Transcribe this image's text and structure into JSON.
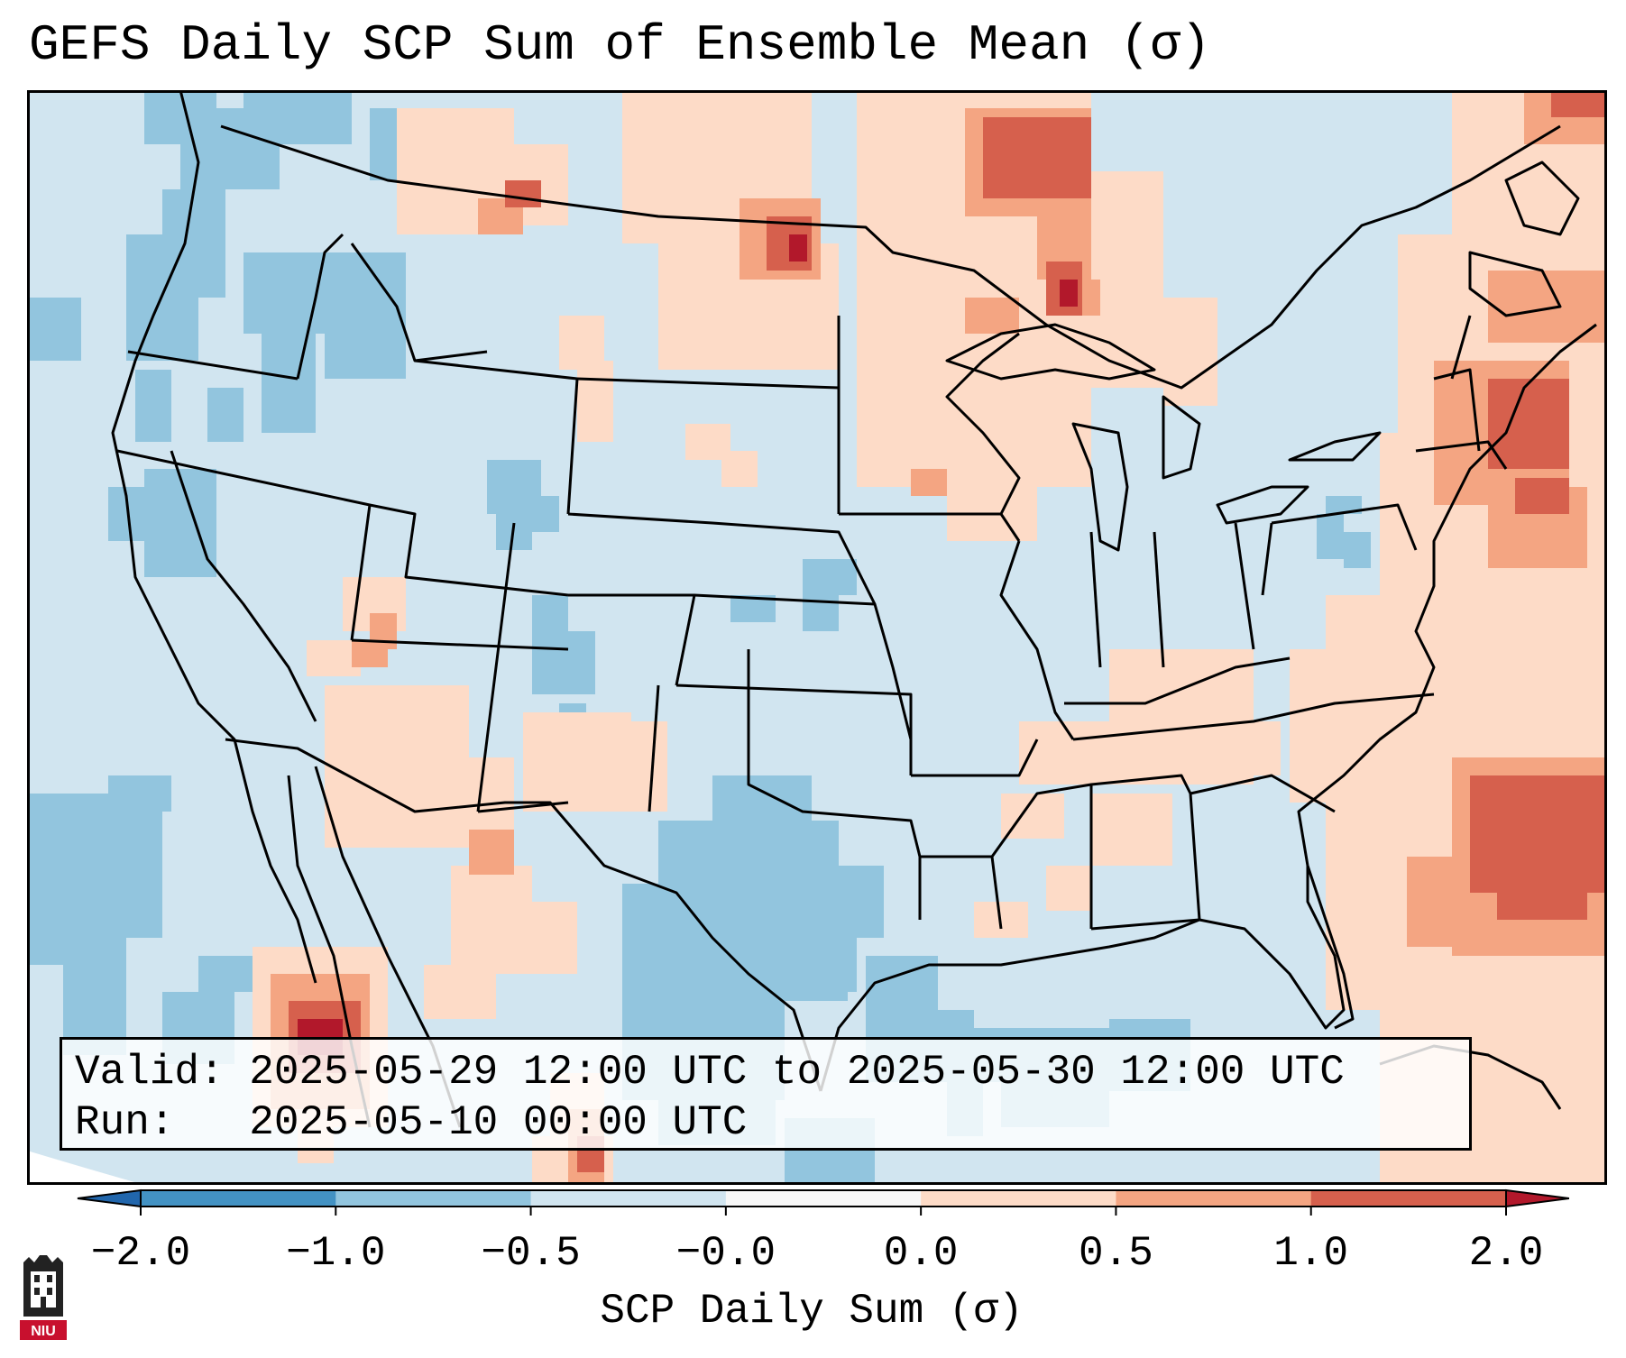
{
  "header": {
    "title": "GEFS Daily SCP Sum of Ensemble Mean (σ)"
  },
  "info": {
    "valid_line": "Valid: 2025-05-29 12:00 UTC to 2025-05-30 12:00 UTC",
    "run_line": "Run:   2025-05-10 00:00 UTC"
  },
  "colorbar": {
    "title": "SCP Daily Sum (σ)",
    "ticks": [
      "−2.0",
      "−1.0",
      "−0.5",
      "−0.0",
      "0.0",
      "0.5",
      "1.0",
      "2.0"
    ],
    "colors": [
      "#4392c3",
      "#92c5de",
      "#d1e5f0",
      "#f7f7f7",
      "#fddbc7",
      "#f4a582",
      "#d6604d"
    ],
    "under_color": "#2166ac",
    "over_color": "#b2182b"
  },
  "logo": {
    "text": "NIU"
  }
}
